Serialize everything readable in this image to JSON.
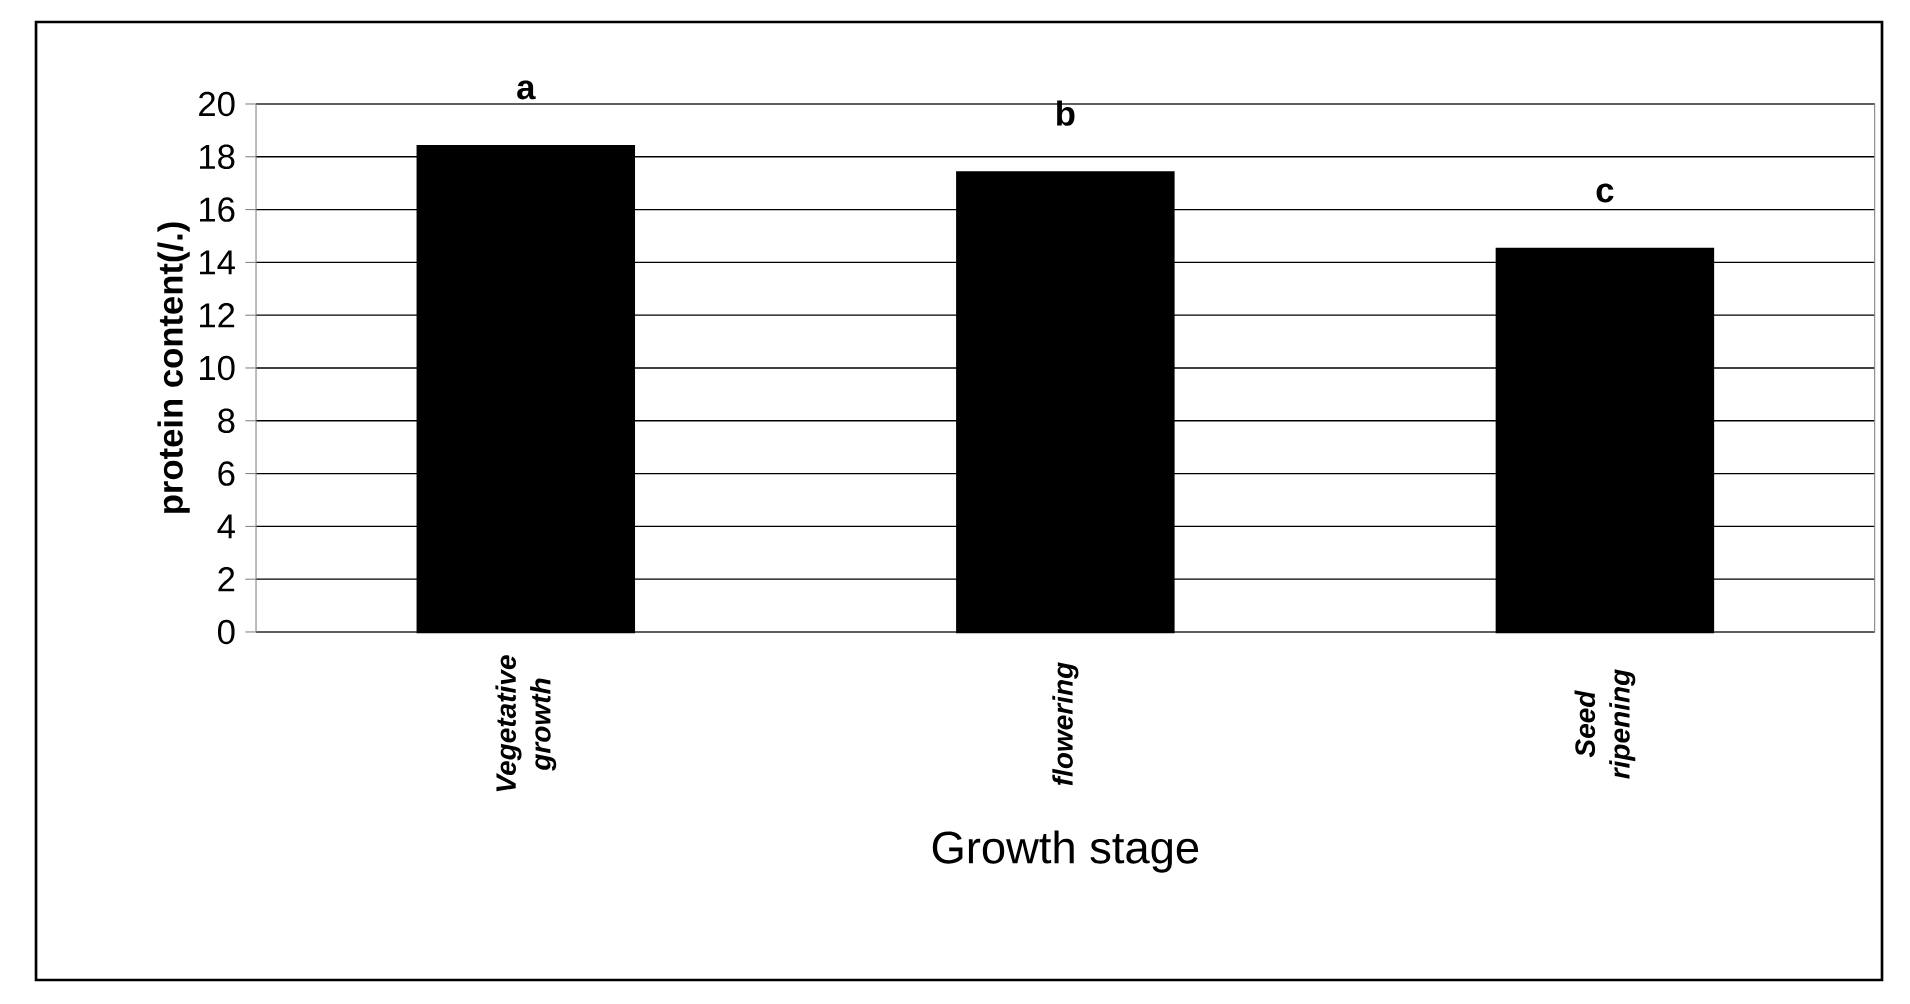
{
  "chart_data": {
    "type": "bar",
    "xlabel": "Growth stage",
    "ylabel": "protein content(/.)",
    "categories": [
      "Vegetative growth",
      "flowering",
      "Seed ripening"
    ],
    "values": [
      18.4,
      17.4,
      14.5
    ],
    "color": "#000000",
    "ylim": [
      0,
      20
    ],
    "yticks": [
      0,
      2,
      4,
      6,
      8,
      10,
      12,
      14,
      16,
      18,
      20
    ],
    "grid": "y",
    "annotations": [
      "a",
      "b",
      "c"
    ]
  }
}
